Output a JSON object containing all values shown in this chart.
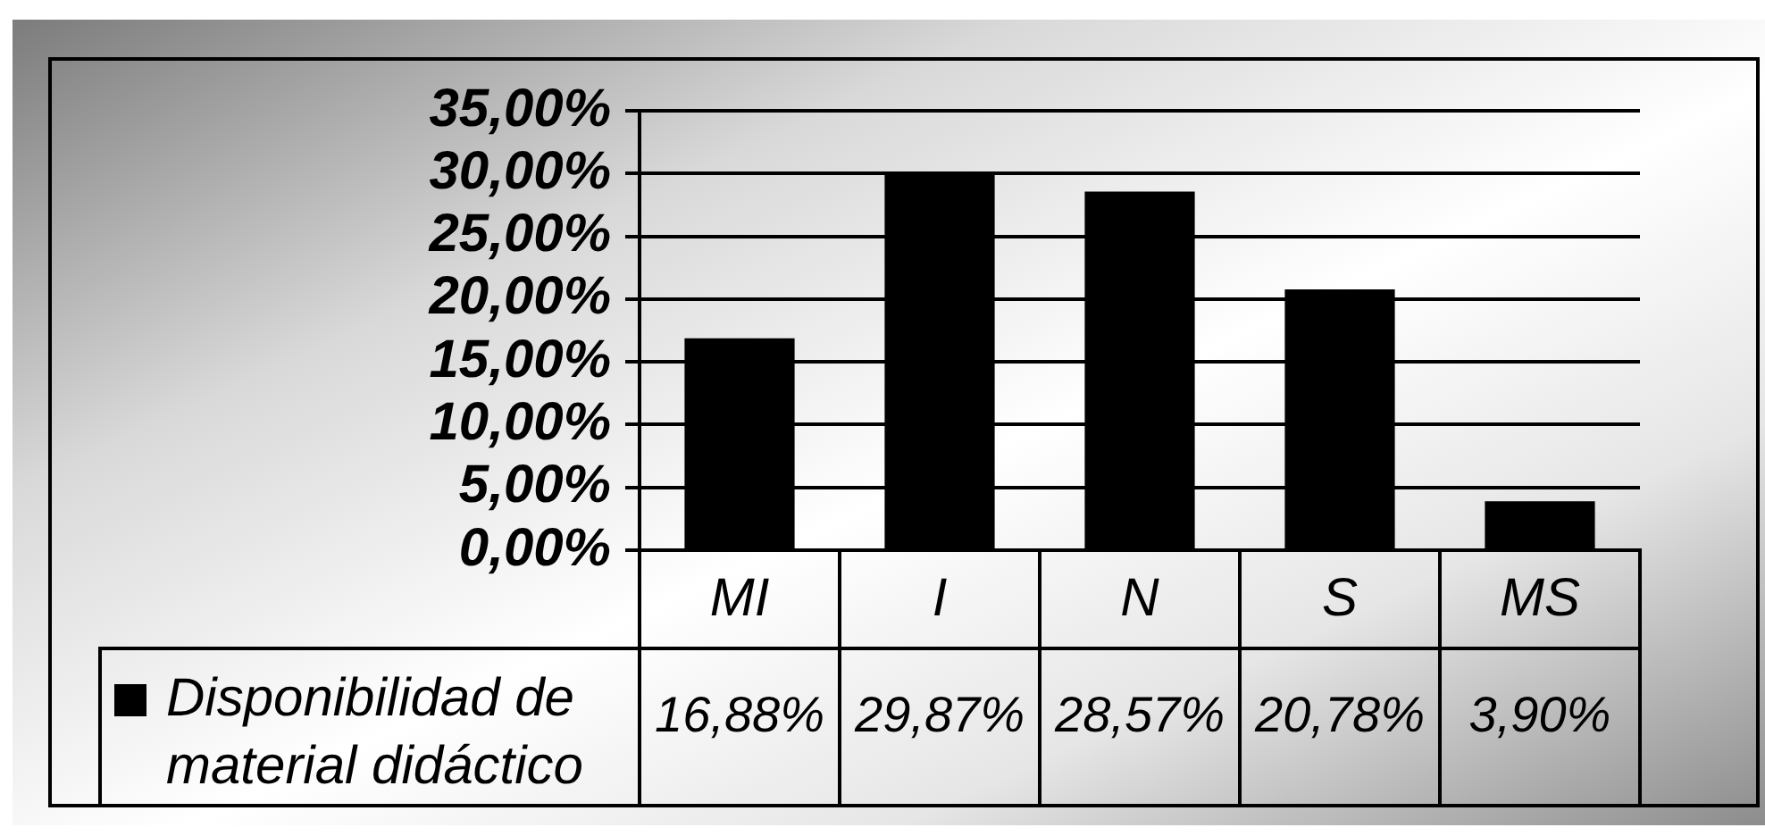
{
  "chart_data": {
    "type": "bar",
    "categories": [
      "MI",
      "I",
      "N",
      "S",
      "MS"
    ],
    "series": [
      {
        "name": "Disponibilidad de material didáctico",
        "color": "#000000",
        "values": [
          16.88,
          29.87,
          28.57,
          20.78,
          3.9
        ],
        "value_labels": [
          "16,88%",
          "29,87%",
          "28,57%",
          "20,78%",
          "3,90%"
        ]
      }
    ],
    "ylim": [
      0,
      35
    ],
    "yticks": [
      {
        "value": 0,
        "label": "0,00%"
      },
      {
        "value": 5,
        "label": "5,00%"
      },
      {
        "value": 10,
        "label": "10,00%"
      },
      {
        "value": 15,
        "label": "15,00%"
      },
      {
        "value": 20,
        "label": "20,00%"
      },
      {
        "value": 25,
        "label": "25,00%"
      },
      {
        "value": 30,
        "label": "30,00%"
      },
      {
        "value": 35,
        "label": "35,00%"
      }
    ],
    "grid": "y",
    "legend": "bottom left"
  }
}
